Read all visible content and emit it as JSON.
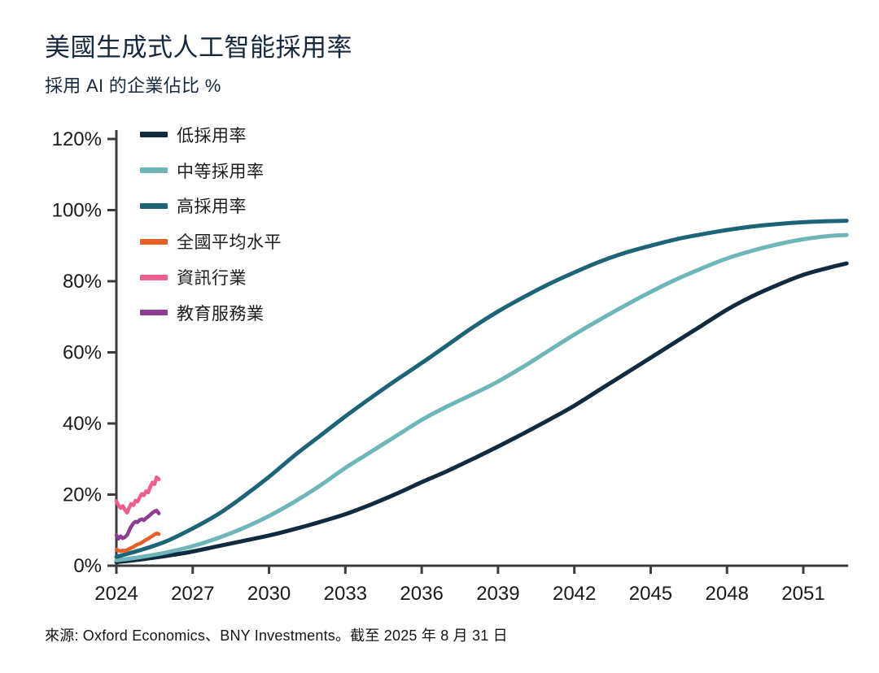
{
  "page": {
    "title": "美國生成式人工智能採用率",
    "subtitle": "採用 AI 的企業佔比 %",
    "source": "來源: Oxford Economics、BNY Investments。截至 2025 年 8 月 31 日"
  },
  "chart_data": {
    "type": "line",
    "title": "美國生成式人工智能採用率",
    "subtitle": "採用 AI 的企業佔比 %",
    "xlabel": "",
    "ylabel": "採用 AI 的企業佔比 %",
    "grid": false,
    "legend_position": "top-left-inside",
    "xlim": [
      2024,
      2052.7
    ],
    "ylim": [
      0,
      120
    ],
    "x_tick_values": [
      2024,
      2027,
      2030,
      2033,
      2036,
      2039,
      2042,
      2045,
      2048,
      2051
    ],
    "x_tick_labels": [
      "2024",
      "2027",
      "2030",
      "2033",
      "2036",
      "2039",
      "2042",
      "2045",
      "2048",
      "2051"
    ],
    "y_tick_values": [
      0,
      20,
      40,
      60,
      80,
      100,
      120
    ],
    "y_tick_labels": [
      "0%",
      "20%",
      "40%",
      "60%",
      "80%",
      "100%",
      "120%"
    ],
    "axis_color": "#3c3c3c",
    "tick_label_color": "#1a1a1a",
    "series": [
      {
        "key": "low-adoption",
        "name": "低採用率",
        "color": "#102a40",
        "style": "projection",
        "points": [
          [
            2024,
            1
          ],
          [
            2025,
            1.8
          ],
          [
            2026,
            2.8
          ],
          [
            2027,
            4
          ],
          [
            2028,
            5.5
          ],
          [
            2029,
            7
          ],
          [
            2030,
            8.5
          ],
          [
            2031,
            10.3
          ],
          [
            2032,
            12.3
          ],
          [
            2033,
            14.5
          ],
          [
            2034,
            17.2
          ],
          [
            2035,
            20.2
          ],
          [
            2036,
            23.5
          ],
          [
            2037,
            26.6
          ],
          [
            2038,
            30
          ],
          [
            2039,
            33.5
          ],
          [
            2040,
            37.2
          ],
          [
            2041,
            41
          ],
          [
            2042,
            45
          ],
          [
            2043,
            49.5
          ],
          [
            2044,
            54
          ],
          [
            2045,
            58.5
          ],
          [
            2046,
            63
          ],
          [
            2047,
            67.5
          ],
          [
            2048,
            72
          ],
          [
            2049,
            75.8
          ],
          [
            2050,
            79
          ],
          [
            2051,
            81.8
          ],
          [
            2052,
            83.8
          ],
          [
            2052.7,
            85
          ]
        ]
      },
      {
        "key": "medium-adoption",
        "name": "中等採用率",
        "color": "#6fb6bb",
        "style": "projection",
        "points": [
          [
            2024,
            1.5
          ],
          [
            2025,
            2.5
          ],
          [
            2026,
            3.8
          ],
          [
            2027,
            5.5
          ],
          [
            2028,
            7.8
          ],
          [
            2029,
            10.6
          ],
          [
            2030,
            14
          ],
          [
            2031,
            18
          ],
          [
            2032,
            22.5
          ],
          [
            2033,
            27.5
          ],
          [
            2034,
            32
          ],
          [
            2035,
            36.5
          ],
          [
            2036,
            41
          ],
          [
            2037,
            44.8
          ],
          [
            2038,
            48.2
          ],
          [
            2039,
            51.8
          ],
          [
            2040,
            56
          ],
          [
            2041,
            60.5
          ],
          [
            2042,
            65
          ],
          [
            2043,
            69.2
          ],
          [
            2044,
            73.2
          ],
          [
            2045,
            77
          ],
          [
            2046,
            80.5
          ],
          [
            2047,
            83.6
          ],
          [
            2048,
            86.4
          ],
          [
            2049,
            88.6
          ],
          [
            2050,
            90.4
          ],
          [
            2051,
            91.8
          ],
          [
            2052,
            92.7
          ],
          [
            2052.7,
            93
          ]
        ]
      },
      {
        "key": "high-adoption",
        "name": "高採用率",
        "color": "#1d6478",
        "style": "projection",
        "points": [
          [
            2024,
            2.5
          ],
          [
            2025,
            4.5
          ],
          [
            2026,
            7
          ],
          [
            2027,
            10.5
          ],
          [
            2028,
            14.5
          ],
          [
            2029,
            19.5
          ],
          [
            2030,
            25
          ],
          [
            2031,
            31
          ],
          [
            2032,
            36.5
          ],
          [
            2033,
            42
          ],
          [
            2034,
            47.2
          ],
          [
            2035,
            52.2
          ],
          [
            2036,
            57
          ],
          [
            2037,
            62
          ],
          [
            2038,
            67
          ],
          [
            2039,
            71.5
          ],
          [
            2040,
            75.5
          ],
          [
            2041,
            79.2
          ],
          [
            2042,
            82.5
          ],
          [
            2043,
            85.5
          ],
          [
            2044,
            88
          ],
          [
            2045,
            90
          ],
          [
            2046,
            91.8
          ],
          [
            2047,
            93.2
          ],
          [
            2048,
            94.4
          ],
          [
            2049,
            95.4
          ],
          [
            2050,
            96.1
          ],
          [
            2051,
            96.6
          ],
          [
            2052,
            96.9
          ],
          [
            2052.7,
            97
          ]
        ]
      },
      {
        "key": "national-average",
        "name": "全國平均水平",
        "color": "#e75f28",
        "style": "historical",
        "points": [
          [
            2024,
            4.5
          ],
          [
            2024.08,
            4.3
          ],
          [
            2024.17,
            4.1
          ],
          [
            2024.25,
            4.3
          ],
          [
            2024.33,
            4.2
          ],
          [
            2024.42,
            4.4
          ],
          [
            2024.5,
            4.7
          ],
          [
            2024.58,
            5
          ],
          [
            2024.67,
            5.3
          ],
          [
            2024.75,
            5.7
          ],
          [
            2024.83,
            6
          ],
          [
            2024.92,
            6.2
          ],
          [
            2025,
            6.5
          ],
          [
            2025.08,
            6.9
          ],
          [
            2025.17,
            7.3
          ],
          [
            2025.25,
            7.6
          ],
          [
            2025.33,
            8
          ],
          [
            2025.42,
            8.4
          ],
          [
            2025.5,
            8.8
          ],
          [
            2025.58,
            9.1
          ],
          [
            2025.67,
            8.9
          ]
        ]
      },
      {
        "key": "information-industry",
        "name": "資訊行業",
        "color": "#ec5e8d",
        "style": "historical",
        "points": [
          [
            2024,
            18.2
          ],
          [
            2024.08,
            17
          ],
          [
            2024.17,
            16.2
          ],
          [
            2024.25,
            16.8
          ],
          [
            2024.33,
            15.8
          ],
          [
            2024.42,
            14.9
          ],
          [
            2024.5,
            16.2
          ],
          [
            2024.58,
            17.4
          ],
          [
            2024.67,
            17
          ],
          [
            2024.75,
            18.3
          ],
          [
            2024.83,
            18
          ],
          [
            2024.92,
            19.3
          ],
          [
            2025,
            20.2
          ],
          [
            2025.08,
            19.8
          ],
          [
            2025.17,
            21
          ],
          [
            2025.25,
            20.6
          ],
          [
            2025.33,
            22.2
          ],
          [
            2025.42,
            23.4
          ],
          [
            2025.5,
            22.9
          ],
          [
            2025.58,
            24.9
          ],
          [
            2025.67,
            24.3
          ]
        ]
      },
      {
        "key": "education-services",
        "name": "教育服務業",
        "color": "#8e3b94",
        "style": "historical",
        "points": [
          [
            2024,
            8.6
          ],
          [
            2024.08,
            7.6
          ],
          [
            2024.17,
            8.3
          ],
          [
            2024.25,
            7.7
          ],
          [
            2024.33,
            8
          ],
          [
            2024.42,
            8.6
          ],
          [
            2024.5,
            9.8
          ],
          [
            2024.58,
            11
          ],
          [
            2024.67,
            11.9
          ],
          [
            2024.75,
            12.4
          ],
          [
            2024.83,
            12.2
          ],
          [
            2024.92,
            12.9
          ],
          [
            2025,
            13.1
          ],
          [
            2025.08,
            12.8
          ],
          [
            2025.17,
            13.4
          ],
          [
            2025.25,
            13.8
          ],
          [
            2025.33,
            14.3
          ],
          [
            2025.42,
            14.9
          ],
          [
            2025.5,
            15.3
          ],
          [
            2025.58,
            15.5
          ],
          [
            2025.67,
            14.7
          ]
        ]
      }
    ]
  }
}
